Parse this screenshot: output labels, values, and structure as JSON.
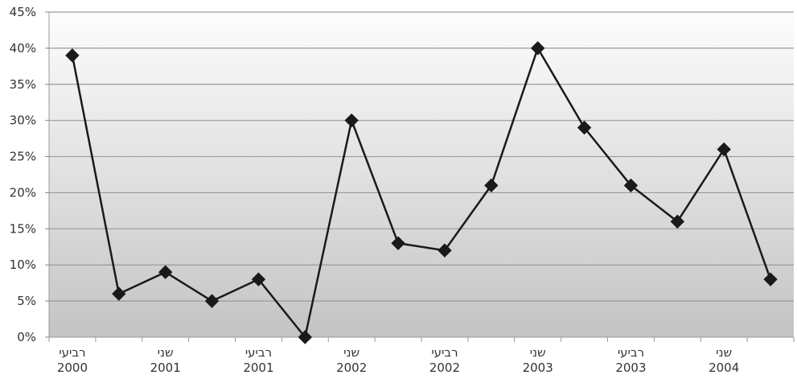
{
  "chart_data": {
    "type": "line",
    "categories": [
      "רביעי 2000",
      "",
      "שני 2001",
      "",
      "רביעי 2001",
      "",
      "שני 2002",
      "",
      "רביעי 2002",
      "",
      "שני 2003",
      "",
      "רביעי 2003",
      "",
      "שני 2004",
      ""
    ],
    "x_labels": [
      {
        "index": 0,
        "line1": "רביעי",
        "line2": "2000"
      },
      {
        "index": 2,
        "line1": "שני",
        "line2": "2001"
      },
      {
        "index": 4,
        "line1": "רביעי",
        "line2": "2001"
      },
      {
        "index": 6,
        "line1": "שני",
        "line2": "2002"
      },
      {
        "index": 8,
        "line1": "רביעי",
        "line2": "2002"
      },
      {
        "index": 10,
        "line1": "שני",
        "line2": "2003"
      },
      {
        "index": 12,
        "line1": "רביעי",
        "line2": "2003"
      },
      {
        "index": 14,
        "line1": "שני",
        "line2": "2004"
      }
    ],
    "series": [
      {
        "values": [
          39,
          6,
          9,
          5,
          8,
          0,
          30,
          13,
          12,
          21,
          40,
          29,
          21,
          16,
          26,
          8
        ]
      }
    ],
    "yticks": [
      "0%",
      "5%",
      "10%",
      "15%",
      "20%",
      "25%",
      "30%",
      "35%",
      "40%",
      "45%"
    ],
    "ylim": [
      0,
      45
    ],
    "grid": true,
    "marker": "diamond",
    "colors": {
      "line": "#1a1a1a",
      "marker": "#1a1a1a",
      "grid": "#9a9a9a",
      "bg_top": "#fdfdfd",
      "bg_bottom": "#c4c4c4"
    }
  }
}
